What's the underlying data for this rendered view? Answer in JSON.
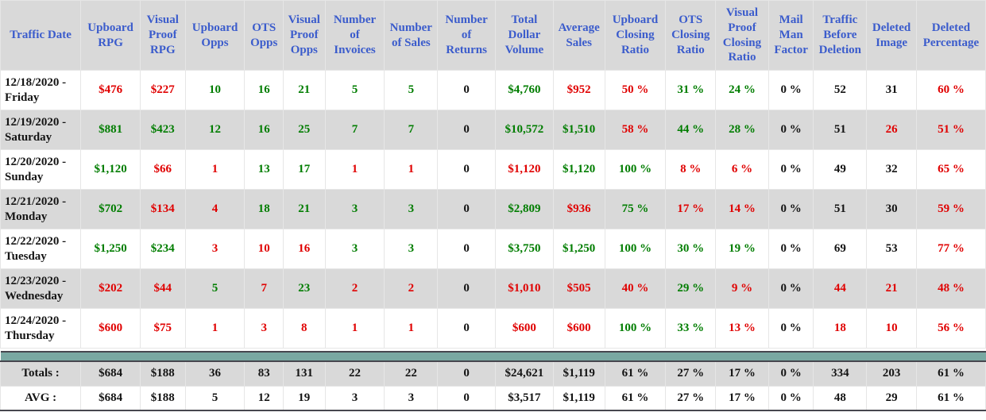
{
  "colors": {
    "header_text": "#3b5ccc",
    "positive": "#007d00",
    "negative": "#e00000",
    "neutral_text": "#141414",
    "shaded_row": "#d9d9d9",
    "separator_bar": "#79a8a2",
    "dark_line": "#46464e"
  },
  "table": {
    "columns": [
      {
        "id": "traffic-date",
        "label": "Traffic Date"
      },
      {
        "id": "upboard-rpg",
        "label": "Upboard RPG"
      },
      {
        "id": "visual-proof-rpg",
        "label": "Visual Proof RPG"
      },
      {
        "id": "upboard-opps",
        "label": "Upboard Opps"
      },
      {
        "id": "ots-opps",
        "label": "OTS Opps"
      },
      {
        "id": "visual-proof-opps",
        "label": "Visual Proof Opps"
      },
      {
        "id": "number-of-invoices",
        "label": "Number of Invoices"
      },
      {
        "id": "number-of-sales",
        "label": "Number of Sales"
      },
      {
        "id": "number-of-returns",
        "label": "Number of Returns"
      },
      {
        "id": "total-dollar-volume",
        "label": "Total Dollar Volume"
      },
      {
        "id": "average-sales",
        "label": "Average Sales"
      },
      {
        "id": "upboard-closing-ratio",
        "label": "Upboard Closing Ratio"
      },
      {
        "id": "ots-closing-ratio",
        "label": "OTS Closing Ratio"
      },
      {
        "id": "visual-proof-closing-ratio",
        "label": "Visual Proof Closing Ratio"
      },
      {
        "id": "mail-man-factor",
        "label": "Mail Man Factor"
      },
      {
        "id": "traffic-before-deletion",
        "label": "Traffic Before Deletion"
      },
      {
        "id": "deleted-image",
        "label": "Deleted Image"
      },
      {
        "id": "deleted-percentage",
        "label": "Deleted Percentage"
      }
    ],
    "rows": [
      {
        "date": "12/18/2020 - Friday",
        "cells": [
          {
            "text": "$476",
            "color": "red"
          },
          {
            "text": "$227",
            "color": "red"
          },
          {
            "text": "10",
            "color": "green"
          },
          {
            "text": "16",
            "color": "green"
          },
          {
            "text": "21",
            "color": "green"
          },
          {
            "text": "5",
            "color": "green"
          },
          {
            "text": "5",
            "color": "green"
          },
          {
            "text": "0",
            "color": "black"
          },
          {
            "text": "$4,760",
            "color": "green"
          },
          {
            "text": "$952",
            "color": "red"
          },
          {
            "text": "50 %",
            "color": "red"
          },
          {
            "text": "31 %",
            "color": "green"
          },
          {
            "text": "24 %",
            "color": "green"
          },
          {
            "text": "0 %",
            "color": "black"
          },
          {
            "text": "52",
            "color": "black"
          },
          {
            "text": "31",
            "color": "black"
          },
          {
            "text": "60 %",
            "color": "red"
          }
        ]
      },
      {
        "date": "12/19/2020 - Saturday",
        "cells": [
          {
            "text": "$881",
            "color": "green"
          },
          {
            "text": "$423",
            "color": "green"
          },
          {
            "text": "12",
            "color": "green"
          },
          {
            "text": "16",
            "color": "green"
          },
          {
            "text": "25",
            "color": "green"
          },
          {
            "text": "7",
            "color": "green"
          },
          {
            "text": "7",
            "color": "green"
          },
          {
            "text": "0",
            "color": "black"
          },
          {
            "text": "$10,572",
            "color": "green"
          },
          {
            "text": "$1,510",
            "color": "green"
          },
          {
            "text": "58 %",
            "color": "red"
          },
          {
            "text": "44 %",
            "color": "green"
          },
          {
            "text": "28 %",
            "color": "green"
          },
          {
            "text": "0 %",
            "color": "black"
          },
          {
            "text": "51",
            "color": "black"
          },
          {
            "text": "26",
            "color": "red"
          },
          {
            "text": "51 %",
            "color": "red"
          }
        ]
      },
      {
        "date": "12/20/2020 - Sunday",
        "cells": [
          {
            "text": "$1,120",
            "color": "green"
          },
          {
            "text": "$66",
            "color": "red"
          },
          {
            "text": "1",
            "color": "red"
          },
          {
            "text": "13",
            "color": "green"
          },
          {
            "text": "17",
            "color": "green"
          },
          {
            "text": "1",
            "color": "red"
          },
          {
            "text": "1",
            "color": "red"
          },
          {
            "text": "0",
            "color": "black"
          },
          {
            "text": "$1,120",
            "color": "red"
          },
          {
            "text": "$1,120",
            "color": "green"
          },
          {
            "text": "100 %",
            "color": "green"
          },
          {
            "text": "8 %",
            "color": "red"
          },
          {
            "text": "6 %",
            "color": "red"
          },
          {
            "text": "0 %",
            "color": "black"
          },
          {
            "text": "49",
            "color": "black"
          },
          {
            "text": "32",
            "color": "black"
          },
          {
            "text": "65 %",
            "color": "red"
          }
        ]
      },
      {
        "date": "12/21/2020 - Monday",
        "cells": [
          {
            "text": "$702",
            "color": "green"
          },
          {
            "text": "$134",
            "color": "red"
          },
          {
            "text": "4",
            "color": "red"
          },
          {
            "text": "18",
            "color": "green"
          },
          {
            "text": "21",
            "color": "green"
          },
          {
            "text": "3",
            "color": "green"
          },
          {
            "text": "3",
            "color": "green"
          },
          {
            "text": "0",
            "color": "black"
          },
          {
            "text": "$2,809",
            "color": "green"
          },
          {
            "text": "$936",
            "color": "red"
          },
          {
            "text": "75 %",
            "color": "green"
          },
          {
            "text": "17 %",
            "color": "red"
          },
          {
            "text": "14 %",
            "color": "red"
          },
          {
            "text": "0 %",
            "color": "black"
          },
          {
            "text": "51",
            "color": "black"
          },
          {
            "text": "30",
            "color": "black"
          },
          {
            "text": "59 %",
            "color": "red"
          }
        ]
      },
      {
        "date": "12/22/2020 - Tuesday",
        "cells": [
          {
            "text": "$1,250",
            "color": "green"
          },
          {
            "text": "$234",
            "color": "green"
          },
          {
            "text": "3",
            "color": "red"
          },
          {
            "text": "10",
            "color": "red"
          },
          {
            "text": "16",
            "color": "red"
          },
          {
            "text": "3",
            "color": "green"
          },
          {
            "text": "3",
            "color": "green"
          },
          {
            "text": "0",
            "color": "black"
          },
          {
            "text": "$3,750",
            "color": "green"
          },
          {
            "text": "$1,250",
            "color": "green"
          },
          {
            "text": "100 %",
            "color": "green"
          },
          {
            "text": "30 %",
            "color": "green"
          },
          {
            "text": "19 %",
            "color": "green"
          },
          {
            "text": "0 %",
            "color": "black"
          },
          {
            "text": "69",
            "color": "black"
          },
          {
            "text": "53",
            "color": "black"
          },
          {
            "text": "77 %",
            "color": "red"
          }
        ]
      },
      {
        "date": "12/23/2020 - Wednesday",
        "cells": [
          {
            "text": "$202",
            "color": "red"
          },
          {
            "text": "$44",
            "color": "red"
          },
          {
            "text": "5",
            "color": "green"
          },
          {
            "text": "7",
            "color": "red"
          },
          {
            "text": "23",
            "color": "green"
          },
          {
            "text": "2",
            "color": "red"
          },
          {
            "text": "2",
            "color": "red"
          },
          {
            "text": "0",
            "color": "black"
          },
          {
            "text": "$1,010",
            "color": "red"
          },
          {
            "text": "$505",
            "color": "red"
          },
          {
            "text": "40 %",
            "color": "red"
          },
          {
            "text": "29 %",
            "color": "green"
          },
          {
            "text": "9 %",
            "color": "red"
          },
          {
            "text": "0 %",
            "color": "black"
          },
          {
            "text": "44",
            "color": "red"
          },
          {
            "text": "21",
            "color": "red"
          },
          {
            "text": "48 %",
            "color": "red"
          }
        ]
      },
      {
        "date": "12/24/2020 - Thursday",
        "cells": [
          {
            "text": "$600",
            "color": "red"
          },
          {
            "text": "$75",
            "color": "red"
          },
          {
            "text": "1",
            "color": "red"
          },
          {
            "text": "3",
            "color": "red"
          },
          {
            "text": "8",
            "color": "red"
          },
          {
            "text": "1",
            "color": "red"
          },
          {
            "text": "1",
            "color": "red"
          },
          {
            "text": "0",
            "color": "black"
          },
          {
            "text": "$600",
            "color": "red"
          },
          {
            "text": "$600",
            "color": "red"
          },
          {
            "text": "100 %",
            "color": "green"
          },
          {
            "text": "33 %",
            "color": "green"
          },
          {
            "text": "13 %",
            "color": "red"
          },
          {
            "text": "0 %",
            "color": "black"
          },
          {
            "text": "18",
            "color": "red"
          },
          {
            "text": "10",
            "color": "red"
          },
          {
            "text": "56 %",
            "color": "red"
          }
        ]
      }
    ],
    "totals": {
      "label": "Totals :",
      "cells": [
        {
          "text": "$684",
          "color": "black"
        },
        {
          "text": "$188",
          "color": "black"
        },
        {
          "text": "36",
          "color": "black"
        },
        {
          "text": "83",
          "color": "black"
        },
        {
          "text": "131",
          "color": "black"
        },
        {
          "text": "22",
          "color": "black"
        },
        {
          "text": "22",
          "color": "black"
        },
        {
          "text": "0",
          "color": "black"
        },
        {
          "text": "$24,621",
          "color": "black"
        },
        {
          "text": "$1,119",
          "color": "black"
        },
        {
          "text": "61 %",
          "color": "black"
        },
        {
          "text": "27 %",
          "color": "black"
        },
        {
          "text": "17 %",
          "color": "black"
        },
        {
          "text": "0 %",
          "color": "black"
        },
        {
          "text": "334",
          "color": "black"
        },
        {
          "text": "203",
          "color": "black"
        },
        {
          "text": "61 %",
          "color": "black"
        }
      ]
    },
    "avg": {
      "label": "AVG :",
      "cells": [
        {
          "text": "$684",
          "color": "black"
        },
        {
          "text": "$188",
          "color": "black"
        },
        {
          "text": "5",
          "color": "black"
        },
        {
          "text": "12",
          "color": "black"
        },
        {
          "text": "19",
          "color": "black"
        },
        {
          "text": "3",
          "color": "black"
        },
        {
          "text": "3",
          "color": "black"
        },
        {
          "text": "0",
          "color": "black"
        },
        {
          "text": "$3,517",
          "color": "black"
        },
        {
          "text": "$1,119",
          "color": "black"
        },
        {
          "text": "61 %",
          "color": "black"
        },
        {
          "text": "27 %",
          "color": "black"
        },
        {
          "text": "17 %",
          "color": "black"
        },
        {
          "text": "0 %",
          "color": "black"
        },
        {
          "text": "48",
          "color": "black"
        },
        {
          "text": "29",
          "color": "black"
        },
        {
          "text": "61 %",
          "color": "black"
        }
      ]
    }
  }
}
